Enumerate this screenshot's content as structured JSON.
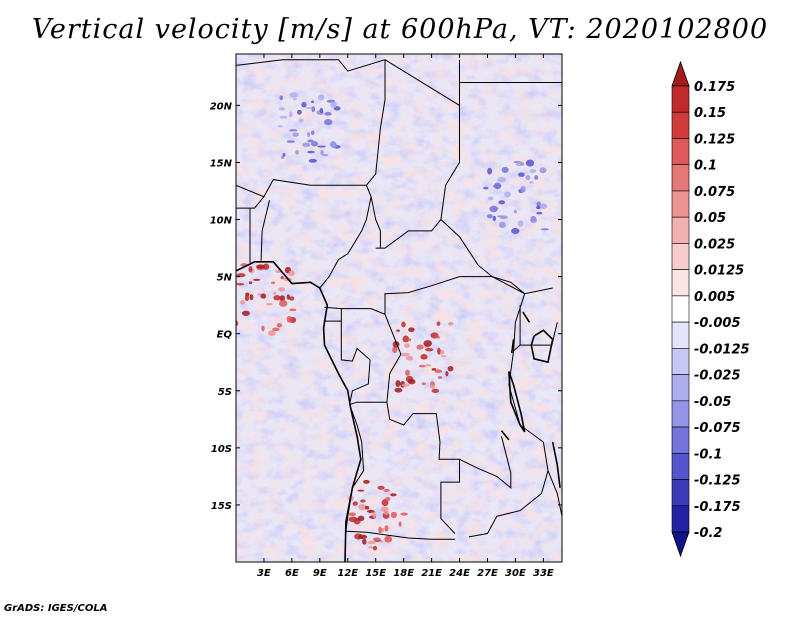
{
  "title": "Vertical velocity [m/s] at 600hPa, VT: 2020102800",
  "footer": "GrADS: IGES/COLA",
  "chart_data": {
    "type": "heatmap",
    "title": "Vertical velocity [m/s] at 600hPa, VT: 2020102800",
    "variable": "Vertical velocity",
    "units": "m/s",
    "level": "600hPa",
    "valid_time": "2020102800",
    "lon_range": [
      0,
      35
    ],
    "lat_range": [
      -20,
      24.5
    ],
    "x_ticks": [
      {
        "value": 3,
        "label": "3E"
      },
      {
        "value": 6,
        "label": "6E"
      },
      {
        "value": 9,
        "label": "9E"
      },
      {
        "value": 12,
        "label": "12E"
      },
      {
        "value": 15,
        "label": "15E"
      },
      {
        "value": 18,
        "label": "18E"
      },
      {
        "value": 21,
        "label": "21E"
      },
      {
        "value": 24,
        "label": "24E"
      },
      {
        "value": 27,
        "label": "27E"
      },
      {
        "value": 30,
        "label": "30E"
      },
      {
        "value": 33,
        "label": "33E"
      }
    ],
    "y_ticks": [
      {
        "value": 20,
        "label": "20N"
      },
      {
        "value": 15,
        "label": "15N"
      },
      {
        "value": 10,
        "label": "10N"
      },
      {
        "value": 5,
        "label": "5N"
      },
      {
        "value": 0,
        "label": "EQ"
      },
      {
        "value": -5,
        "label": "5S"
      },
      {
        "value": -10,
        "label": "10S"
      },
      {
        "value": -15,
        "label": "15S"
      }
    ],
    "colorbar": {
      "labels": [
        "0.175",
        "0.15",
        "0.125",
        "0.1",
        "0.075",
        "0.05",
        "0.025",
        "0.0125",
        "0.005",
        "-0.005",
        "-0.0125",
        "-0.025",
        "-0.05",
        "-0.075",
        "-0.1",
        "-0.125",
        "-0.175",
        "-0.2"
      ],
      "colors": [
        "#a51a1a",
        "#c02a2a",
        "#d03c3c",
        "#de5a5a",
        "#e47878",
        "#ec9494",
        "#f3b0b0",
        "#f8cccc",
        "#fbe4e4",
        "#ffffff",
        "#e4e4fa",
        "#c8c8f4",
        "#aeaeee",
        "#9494e8",
        "#7474da",
        "#5656cc",
        "#3c3cb8",
        "#2222a2",
        "#12128a"
      ]
    },
    "notable_features": [
      {
        "label": "strong ascent band",
        "lon": 15,
        "lat": -16
      },
      {
        "label": "ascent cluster",
        "lon": 20,
        "lat": -2
      },
      {
        "label": "ascent cluster",
        "lon": 3,
        "lat": 3
      },
      {
        "label": "subsidence region",
        "lon": 30,
        "lat": 12
      },
      {
        "label": "subsidence region",
        "lon": 8,
        "lat": 18
      }
    ]
  }
}
